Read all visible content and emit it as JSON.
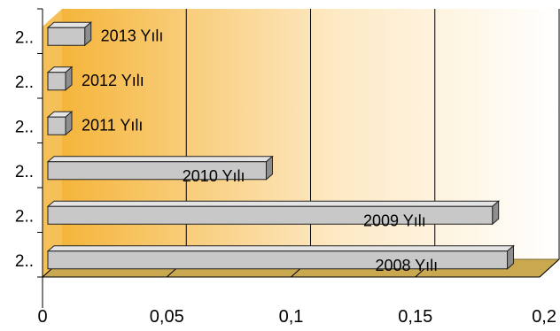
{
  "chart_data": {
    "type": "bar",
    "orientation": "horizontal",
    "style": "3d",
    "categories": [
      "2..",
      "2..",
      "2..",
      "2..",
      "2..",
      "2.."
    ],
    "series_labels": [
      "2013 Yılı",
      "2012 Yılı",
      "2011 Yılı",
      "2010 Yılı",
      "2009 Yılı",
      "2008 Yılı"
    ],
    "values": [
      0.017,
      0.009,
      0.009,
      0.09,
      0.181,
      0.187
    ],
    "xlim": [
      0,
      0.2
    ],
    "xticks": [
      "0",
      "0,05",
      "0,1",
      "0,15",
      "0,2"
    ],
    "grid": true,
    "legend": "none",
    "colors": {
      "bar_fill": "#c8c8c8",
      "bar_top": "#e4e4e4",
      "bar_side": "#8e8e8e",
      "bar_stroke": "#222222",
      "wall_left": "#f5b53c",
      "wall_right": "#ffffff",
      "floor": "#c9a850",
      "grid": "#000000"
    }
  }
}
